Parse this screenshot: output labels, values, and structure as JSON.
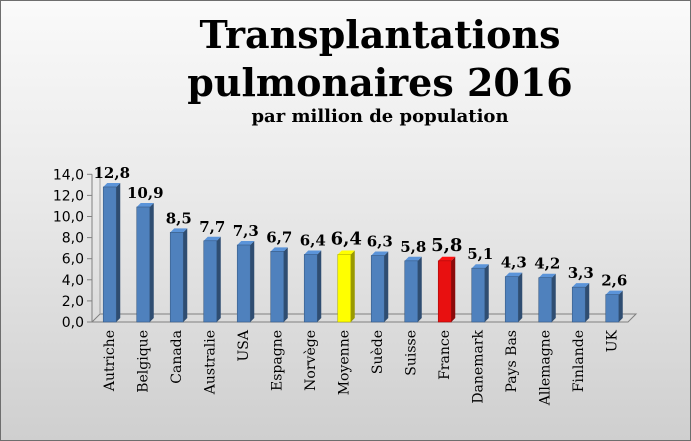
{
  "chart_data": {
    "type": "bar",
    "title_line1": "Transplantations",
    "title_line2": "pulmonaires 2016",
    "subtitle": "par million de population",
    "xlabel": "",
    "ylabel": "",
    "ylim": [
      0,
      14
    ],
    "yticks": [
      "0,0",
      "2,0",
      "4,0",
      "6,0",
      "8,0",
      "10,0",
      "12,0",
      "14,0"
    ],
    "categories": [
      "Autriche",
      "Belgique",
      "Canada",
      "Australie",
      "USA",
      "Espagne",
      "Norvège",
      "Moyenne",
      "Suède",
      "Suisse",
      "France",
      "Danemark",
      "Pays Bas",
      "Allemagne",
      "Finlande",
      "UK"
    ],
    "values": [
      12.8,
      10.9,
      8.5,
      7.7,
      7.3,
      6.7,
      6.4,
      6.4,
      6.3,
      5.8,
      5.8,
      5.1,
      4.3,
      4.2,
      3.3,
      2.6
    ],
    "value_labels": [
      "12,8",
      "10,9",
      "8,5",
      "7,7",
      "7,3",
      "6,7",
      "6,4",
      "6,4",
      "6,3",
      "5,8",
      "5,8",
      "5,1",
      "4,3",
      "4,2",
      "3,3",
      "2,6"
    ],
    "bar_colors": [
      "#4f81bd",
      "#4f81bd",
      "#4f81bd",
      "#4f81bd",
      "#4f81bd",
      "#4f81bd",
      "#4f81bd",
      "#ffff00",
      "#4f81bd",
      "#4f81bd",
      "#e81010",
      "#4f81bd",
      "#4f81bd",
      "#4f81bd",
      "#4f81bd",
      "#4f81bd"
    ],
    "highlighted": [
      "Moyenne",
      "France"
    ],
    "grid": false,
    "legend": "none"
  }
}
